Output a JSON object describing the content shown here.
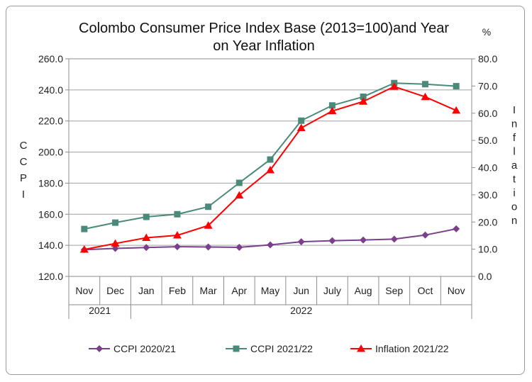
{
  "chart_data": {
    "type": "line",
    "title_lines": [
      "Colombo Consumer Price Index Base (2013=100)and Year",
      "on Year Inflation"
    ],
    "ylabel_left": "CCPI",
    "ylabel_right": "Inflation",
    "y2_unit": "%",
    "left_axis": {
      "min": 120,
      "max": 260,
      "step": 20
    },
    "right_axis": {
      "min": 0,
      "max": 80,
      "step": 10
    },
    "left_ticks": [
      "120.0",
      "140.0",
      "160.0",
      "180.0",
      "200.0",
      "220.0",
      "240.0",
      "260.0"
    ],
    "right_ticks": [
      "0.0",
      "10.0",
      "20.0",
      "30.0",
      "40.0",
      "50.0",
      "60.0",
      "70.0",
      "80.0"
    ],
    "categories": [
      "Nov",
      "Dec",
      "Jan",
      "Feb",
      "Mar",
      "Apr",
      "May",
      "Jun",
      "July",
      "Aug",
      "Sep",
      "Oct",
      "Nov"
    ],
    "year_groups": [
      {
        "label": "2021",
        "span": 2
      },
      {
        "label": "2022",
        "span": 11
      }
    ],
    "series": [
      {
        "name": "CCPI 2020/21",
        "axis": "left",
        "color": "#7b3f8c",
        "marker": "diamond",
        "values": [
          137.2,
          138.0,
          138.6,
          139.1,
          138.9,
          138.7,
          140.3,
          142.3,
          143.0,
          143.4,
          144.0,
          146.6,
          150.6
        ]
      },
      {
        "name": "CCPI 2021/22",
        "axis": "left",
        "color": "#4a8a7a",
        "marker": "square",
        "values": [
          150.5,
          154.6,
          158.3,
          160.0,
          164.8,
          180.2,
          195.2,
          220.2,
          230.0,
          235.6,
          244.4,
          243.7,
          242.4
        ]
      },
      {
        "name": "Inflation 2021/22",
        "axis": "right",
        "color": "#ff0000",
        "marker": "triangle",
        "values": [
          9.9,
          12.1,
          14.2,
          15.1,
          18.7,
          29.8,
          39.1,
          54.6,
          60.8,
          64.3,
          69.8,
          66.0,
          61.0
        ]
      }
    ]
  }
}
